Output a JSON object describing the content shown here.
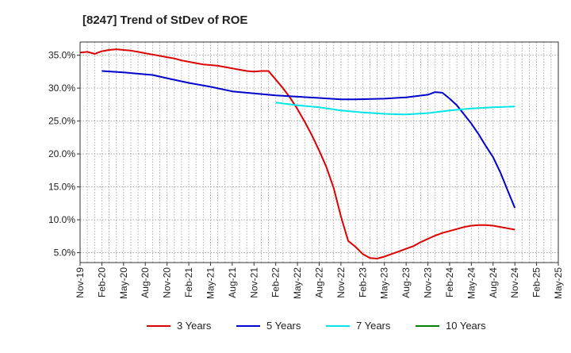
{
  "chart_data": {
    "type": "line",
    "title": "[8247]  Trend of StDev of ROE",
    "xlabel": "",
    "ylabel": "",
    "x_tick_labels": [
      "Nov-19",
      "Feb-20",
      "May-20",
      "Aug-20",
      "Nov-20",
      "Feb-21",
      "May-21",
      "Aug-21",
      "Nov-21",
      "Feb-22",
      "May-22",
      "Aug-22",
      "Nov-22",
      "Feb-23",
      "May-23",
      "Aug-23",
      "Nov-23",
      "Feb-24",
      "May-24",
      "Aug-24",
      "Nov-24",
      "Feb-25",
      "May-25"
    ],
    "x_tick_month_index": [
      0,
      3,
      6,
      9,
      12,
      15,
      18,
      21,
      24,
      27,
      30,
      33,
      36,
      39,
      42,
      45,
      48,
      51,
      54,
      57,
      60,
      63,
      66
    ],
    "x_range_month_index": [
      0,
      66
    ],
    "y_tick_labels": [
      "5.0%",
      "10.0%",
      "15.0%",
      "20.0%",
      "25.0%",
      "30.0%",
      "35.0%"
    ],
    "y_tick_values": [
      5,
      10,
      15,
      20,
      25,
      30,
      35
    ],
    "ylim": [
      3.5,
      37
    ],
    "grid": true,
    "legend_position": "bottom",
    "series": [
      {
        "name": "3 Years",
        "color": "#dd0000",
        "points": [
          [
            0,
            35.4
          ],
          [
            1,
            35.5
          ],
          [
            2,
            35.2
          ],
          [
            3,
            35.6
          ],
          [
            4,
            35.8
          ],
          [
            5,
            35.9
          ],
          [
            6,
            35.8
          ],
          [
            7,
            35.7
          ],
          [
            8,
            35.5
          ],
          [
            9,
            35.3
          ],
          [
            10,
            35.1
          ],
          [
            11,
            34.9
          ],
          [
            12,
            34.7
          ],
          [
            13,
            34.5
          ],
          [
            14,
            34.2
          ],
          [
            15,
            34.0
          ],
          [
            16,
            33.8
          ],
          [
            17,
            33.6
          ],
          [
            18,
            33.5
          ],
          [
            19,
            33.4
          ],
          [
            20,
            33.2
          ],
          [
            21,
            33.0
          ],
          [
            22,
            32.8
          ],
          [
            23,
            32.6
          ],
          [
            24,
            32.5
          ],
          [
            25,
            32.6
          ],
          [
            26,
            32.6
          ],
          [
            27,
            31.3
          ],
          [
            28,
            30.0
          ],
          [
            29,
            28.5
          ],
          [
            30,
            26.8
          ],
          [
            31,
            24.9
          ],
          [
            32,
            22.8
          ],
          [
            33,
            20.5
          ],
          [
            34,
            18.0
          ],
          [
            35,
            14.8
          ],
          [
            36,
            10.5
          ],
          [
            37,
            6.8
          ],
          [
            38,
            5.9
          ],
          [
            39,
            4.8
          ],
          [
            40,
            4.2
          ],
          [
            41,
            4.1
          ],
          [
            42,
            4.4
          ],
          [
            43,
            4.8
          ],
          [
            44,
            5.2
          ],
          [
            45,
            5.6
          ],
          [
            46,
            6.0
          ],
          [
            47,
            6.6
          ],
          [
            48,
            7.1
          ],
          [
            49,
            7.6
          ],
          [
            50,
            8.0
          ],
          [
            51,
            8.3
          ],
          [
            52,
            8.6
          ],
          [
            53,
            8.9
          ],
          [
            54,
            9.1
          ],
          [
            55,
            9.2
          ],
          [
            56,
            9.2
          ],
          [
            57,
            9.1
          ],
          [
            58,
            8.9
          ],
          [
            59,
            8.7
          ],
          [
            60,
            8.5
          ]
        ]
      },
      {
        "name": "5 Years",
        "color": "#0000cc",
        "points": [
          [
            3,
            32.6
          ],
          [
            6,
            32.4
          ],
          [
            9,
            32.1
          ],
          [
            10,
            32.0
          ],
          [
            12,
            31.5
          ],
          [
            15,
            30.8
          ],
          [
            18,
            30.2
          ],
          [
            21,
            29.5
          ],
          [
            24,
            29.2
          ],
          [
            27,
            28.9
          ],
          [
            30,
            28.7
          ],
          [
            33,
            28.5
          ],
          [
            36,
            28.3
          ],
          [
            38,
            28.3
          ],
          [
            42,
            28.4
          ],
          [
            45,
            28.6
          ],
          [
            48,
            29.0
          ],
          [
            49,
            29.4
          ],
          [
            50,
            29.3
          ],
          [
            51,
            28.4
          ],
          [
            52,
            27.4
          ],
          [
            53,
            26.0
          ],
          [
            54,
            24.6
          ],
          [
            55,
            23.0
          ],
          [
            56,
            21.2
          ],
          [
            57,
            19.5
          ],
          [
            58,
            17.2
          ],
          [
            59,
            14.5
          ],
          [
            60,
            11.8
          ]
        ]
      },
      {
        "name": "7 Years",
        "color": "#00e5e5",
        "points": [
          [
            27,
            27.8
          ],
          [
            30,
            27.4
          ],
          [
            33,
            27.1
          ],
          [
            36,
            26.6
          ],
          [
            39,
            26.3
          ],
          [
            42,
            26.1
          ],
          [
            45,
            26.0
          ],
          [
            48,
            26.2
          ],
          [
            51,
            26.6
          ],
          [
            54,
            26.9
          ],
          [
            57,
            27.1
          ],
          [
            60,
            27.2
          ]
        ]
      },
      {
        "name": "10 Years",
        "color": "#008000",
        "points": []
      }
    ]
  }
}
